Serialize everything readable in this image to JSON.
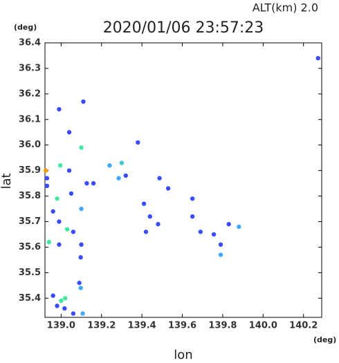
{
  "chart_data": {
    "type": "scatter",
    "title": "2020/01/06 23:57:23",
    "subtitle": "ALT(km) 2.0",
    "xlabel": "lon",
    "ylabel": "lat",
    "xunit": "(deg)",
    "yunit": "(deg)",
    "xlim": [
      138.92,
      140.29
    ],
    "ylim": [
      35.325,
      36.4
    ],
    "xticks": [
      {
        "value": 139.0,
        "label": "139.0"
      },
      {
        "value": 139.2,
        "label": "139.2"
      },
      {
        "value": 139.4,
        "label": "139.4"
      },
      {
        "value": 139.6,
        "label": "139.6"
      },
      {
        "value": 139.8,
        "label": "139.8"
      },
      {
        "value": 140.0,
        "label": "140.0"
      },
      {
        "value": 140.2,
        "label": "140.2"
      }
    ],
    "yticks": [
      {
        "value": 35.4,
        "label": "35.4"
      },
      35.5,
      35.6,
      35.7,
      35.8,
      35.9,
      {
        "value": 36.0,
        "label": "36.0"
      },
      36.1,
      36.2,
      36.3,
      36.4
    ],
    "x": [
      140.272,
      138.99,
      139.11,
      139.04,
      139.1,
      138.996,
      138.924,
      138.93,
      138.93,
      139.04,
      139.05,
      138.98,
      138.96,
      138.99,
      139.03,
      139.06,
      138.94,
      138.99,
      139.1,
      139.097,
      139.09,
      139.097,
      138.96,
      139.0,
      139.02,
      138.98,
      139.017,
      139.06,
      139.107,
      139.127,
      139.16,
      139.1,
      139.24,
      139.3,
      139.285,
      139.32,
      139.38,
      139.41,
      139.42,
      139.48,
      139.53,
      139.65,
      139.65,
      139.69,
      139.756,
      139.79,
      139.79,
      139.83,
      139.88,
      139.487,
      139.44
    ],
    "y": [
      36.34,
      36.14,
      36.17,
      36.05,
      35.99,
      35.92,
      35.9,
      35.87,
      35.84,
      35.9,
      35.81,
      35.79,
      35.74,
      35.7,
      35.67,
      35.66,
      35.62,
      35.61,
      35.61,
      35.56,
      35.46,
      35.44,
      35.41,
      35.39,
      35.4,
      35.37,
      35.36,
      35.34,
      35.34,
      35.85,
      35.85,
      35.75,
      35.92,
      35.93,
      35.87,
      35.88,
      36.01,
      35.77,
      35.66,
      35.69,
      35.83,
      35.79,
      35.72,
      35.66,
      35.65,
      35.61,
      35.57,
      35.69,
      35.68,
      35.87,
      35.72
    ],
    "colors": [
      "#3a4cff",
      "#3a4cff",
      "#3a4cff",
      "#3a4cff",
      "#40e8a0",
      "#40e8a0",
      "#ff9a00",
      "#3a4cff",
      "#3a4cff",
      "#3a4cff",
      "#3a4cff",
      "#40e8a0",
      "#3a4cff",
      "#3a4cff",
      "#40e8a0",
      "#3a4cff",
      "#40e8a0",
      "#3a4cff",
      "#3a4cff",
      "#3a4cff",
      "#3a4cff",
      "#40a8ff",
      "#3a4cff",
      "#40e8a0",
      "#40e8a0",
      "#3a4cff",
      "#3a4cff",
      "#3a4cff",
      "#40a8ff",
      "#3a4cff",
      "#3a4cff",
      "#40a8ff",
      "#40a8ff",
      "#40c8d0",
      "#40a8ff",
      "#3a4cff",
      "#3a4cff",
      "#3a4cff",
      "#3a4cff",
      "#3a4cff",
      "#3a4cff",
      "#3a4cff",
      "#3a4cff",
      "#3a4cff",
      "#3a4cff",
      "#3a4cff",
      "#40a8ff",
      "#3a4cff",
      "#40a8ff",
      "#3a4cff",
      "#3a4cff"
    ]
  }
}
